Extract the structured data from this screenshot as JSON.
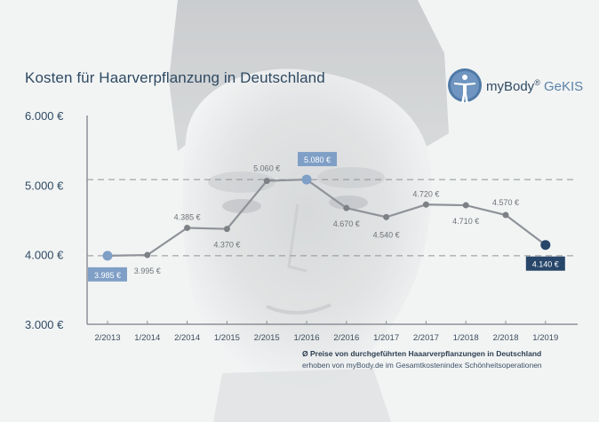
{
  "header": {
    "title": "Kosten für Haarverpflanzung in Deutschland"
  },
  "logo": {
    "brand": "myBody",
    "mark": "®",
    "suffix": "GeKIS"
  },
  "colors": {
    "line": "#8f9399",
    "accent": "#7f9fc6",
    "dark": "#27466a",
    "axis": "#8c9096"
  },
  "chart_data": {
    "type": "line",
    "title": "Kosten für Haarverpflanzung in Deutschland",
    "categories": [
      "2/2013",
      "1/2014",
      "2/2014",
      "1/2015",
      "2/2015",
      "1/2016",
      "2/2016",
      "1/2017",
      "2/2017",
      "1/2018",
      "2/2018",
      "1/2019"
    ],
    "series": [
      {
        "values": [
          3985,
          3995,
          4385,
          4370,
          5060,
          5080,
          4670,
          4540,
          4720,
          4710,
          4570,
          4140
        ]
      }
    ],
    "data_labels": [
      "3.985 €",
      "3.995 €",
      "4.385 €",
      "4.370 €",
      "5.060 €",
      "5.080 €",
      "4.670 €",
      "4.540 €",
      "4.720 €",
      "4.710 €",
      "4.570 €",
      "4.140 €"
    ],
    "highlighted": [
      0,
      5,
      11
    ],
    "reference_lines": [
      5080,
      3985
    ],
    "yticks": [
      3000,
      4000,
      5000,
      6000
    ],
    "ytick_labels": [
      "3.000 €",
      "4.000 €",
      "5.000 €",
      "6.000 €"
    ],
    "ylim": [
      3000,
      6000
    ],
    "grid": false,
    "xlabel": "",
    "ylabel": ""
  },
  "footnote": {
    "line1": "Ø Preise von durchgeführten Haaarverpflanzungen in Deutschland",
    "line2": "erhoben von myBody.de im Gesamtkostenindex Schönheitsoperationen"
  }
}
